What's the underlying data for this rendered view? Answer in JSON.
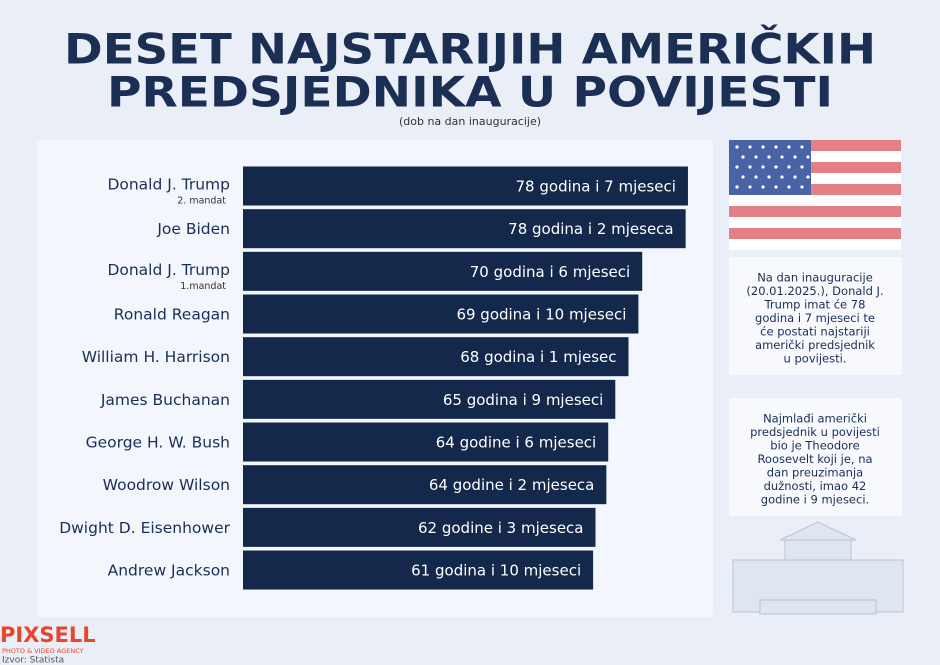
{
  "chart_data": {
    "type": "bar",
    "orientation": "horizontal",
    "title": [
      "DESET NAJSTARIJIH AMERIČKIH",
      "PREDSJEDNIKA U POVIJESTI"
    ],
    "subtitle": "(dob na dan inauguracije)",
    "categories": [
      "Donald J. Trump",
      "Joe Biden",
      "Donald J. Trump",
      "Ronald Reagan",
      "William H. Harrison",
      "James Buchanan",
      "George H. W. Bush",
      "Woodrow Wilson",
      "Dwight D. Eisenhower",
      "Andrew Jackson"
    ],
    "category_notes": [
      "2. mandat",
      null,
      "1.mandat",
      null,
      null,
      null,
      null,
      null,
      null,
      null
    ],
    "values": [
      78.58,
      78.17,
      70.5,
      69.83,
      68.08,
      65.75,
      64.5,
      64.17,
      62.25,
      61.83
    ],
    "value_labels": [
      "78 godina i 7 mjeseci",
      "78 godina i 2 mjeseca",
      "70 godina i 6 mjeseci",
      "69 godina i 10 mjeseci",
      "68 godina i 1 mjesec",
      "65 godina i 9 mjeseci",
      "64 godine i 6 mjeseci",
      "64 godine i 2 mjeseca",
      "62 godine i 3 mjeseca",
      "61 godina i 10 mjeseci"
    ],
    "color": "#13284b",
    "xlim": [
      0,
      80
    ],
    "notes": [
      [
        "Na dan inauguracije",
        "(20.01.2025.), Donald J.",
        "Trump imat će 78",
        "godina i 7 mjeseci te",
        "će postati najstariji",
        "američki predsjednik",
        "u povijesti."
      ],
      [
        "Najmlađi američki",
        "predsjednik u povijesti",
        "bio je Theodore",
        "Roosevelt koji je, na",
        "dan preuzimanja",
        "dužnosti, imao 42",
        "godine i 9 mjeseci."
      ]
    ],
    "logo": "PIXSELL",
    "logo_tagline": "PHOTO & VIDEO AGENCY",
    "source": "Izvor: Statista"
  }
}
